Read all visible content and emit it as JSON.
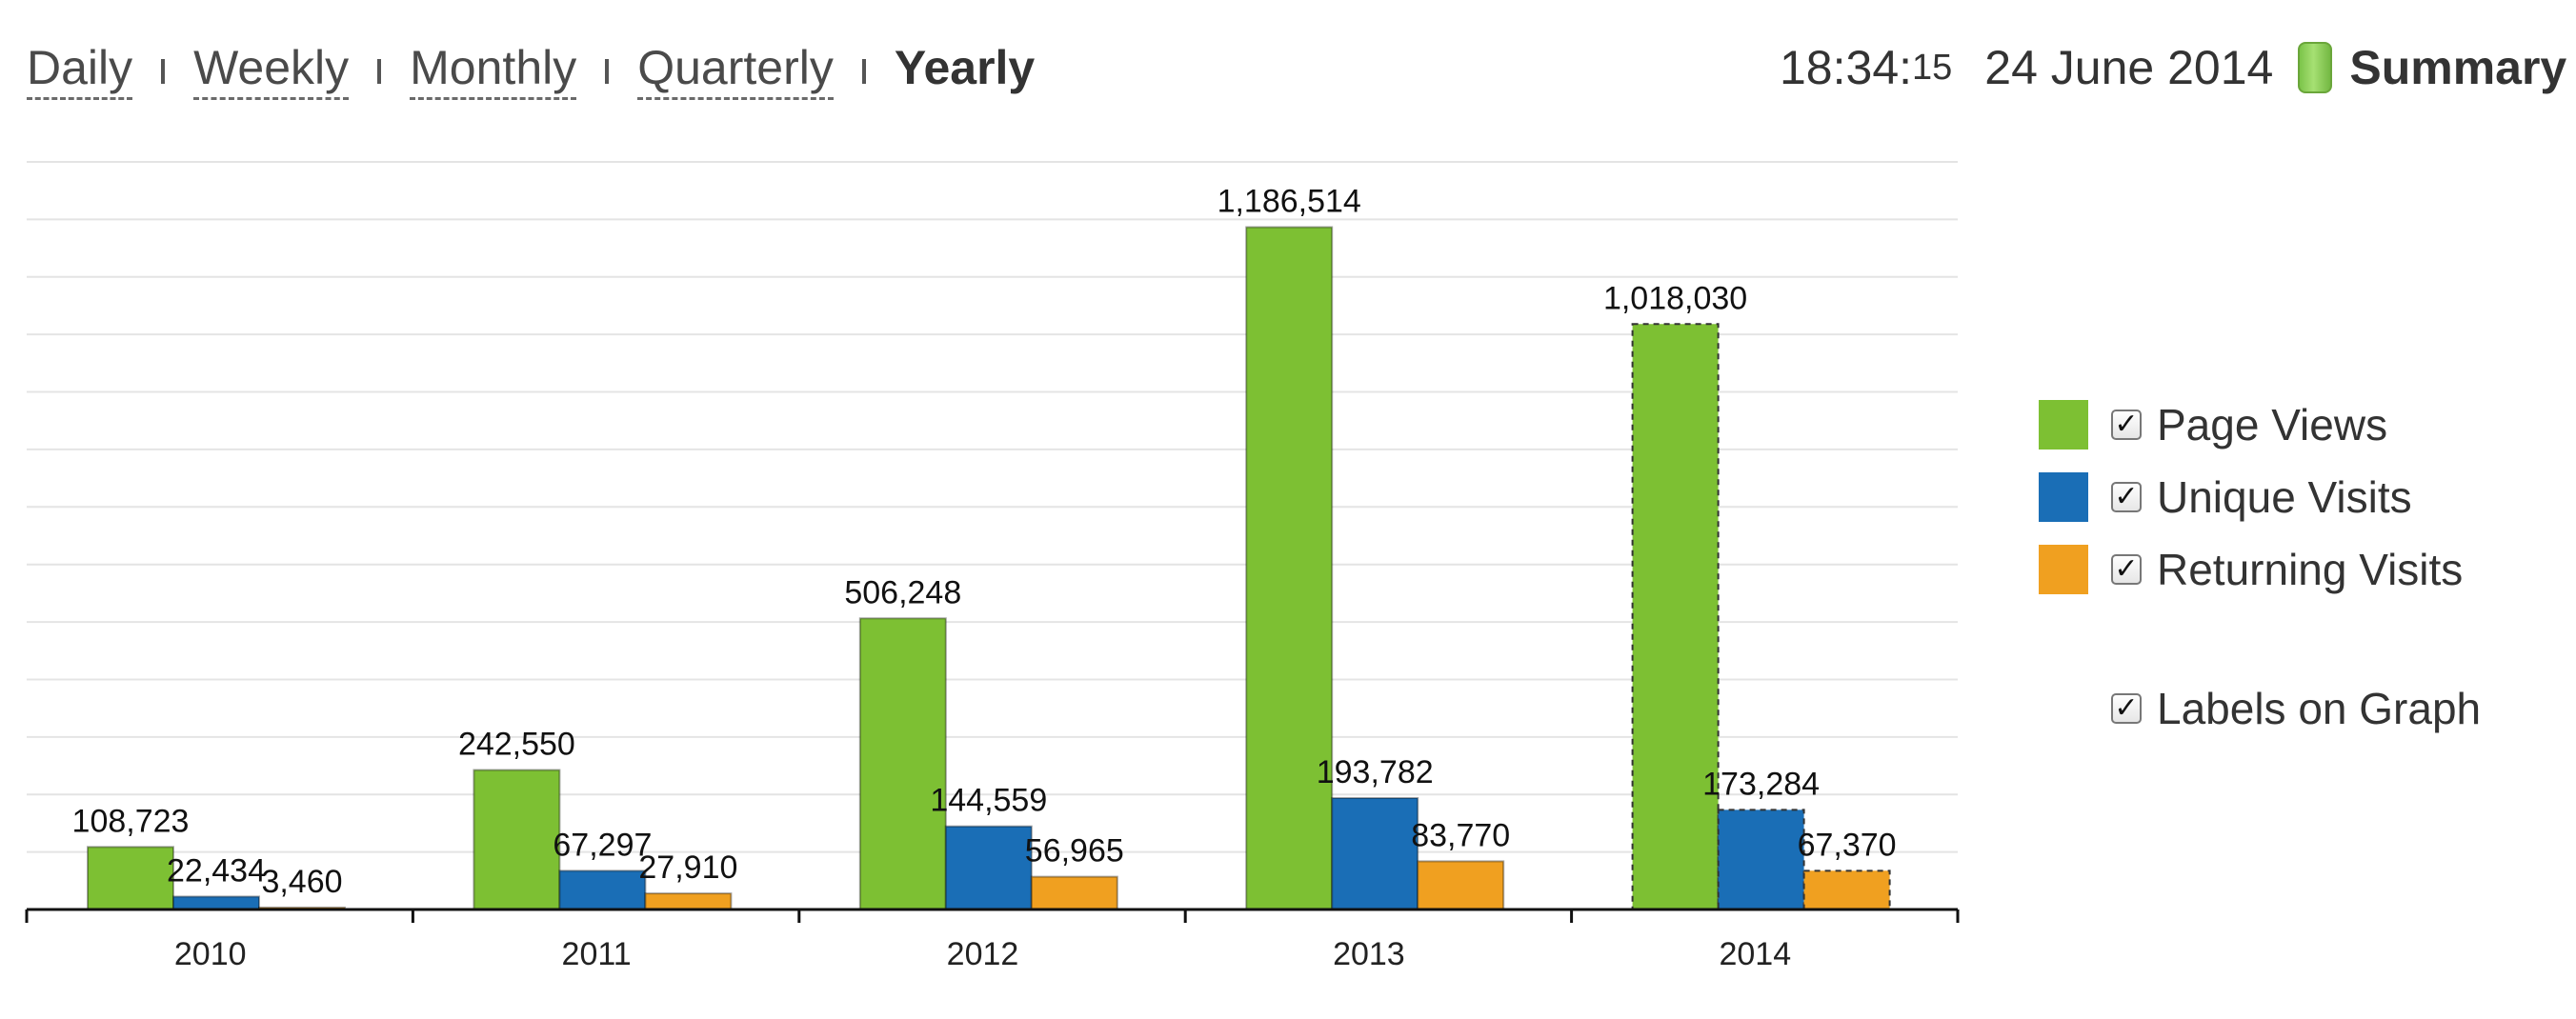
{
  "nav": {
    "periods": [
      "Daily",
      "Weekly",
      "Monthly",
      "Quarterly",
      "Yearly"
    ],
    "active": "Yearly"
  },
  "header": {
    "time": "18:34:",
    "seconds": "15",
    "date": "24 June 2014",
    "summary_label": "Summary"
  },
  "legend": {
    "items": [
      {
        "label": "Page Views",
        "checked": true,
        "color": "#7dc033"
      },
      {
        "label": "Unique Visits",
        "checked": true,
        "color": "#1a6eb6"
      },
      {
        "label": "Returning Visits",
        "checked": true,
        "color": "#f0a020"
      }
    ],
    "labels_option": {
      "label": "Labels on Graph",
      "checked": true
    },
    "check_glyph": "✓"
  },
  "chart_data": {
    "type": "bar",
    "categories": [
      "2010",
      "2011",
      "2012",
      "2013",
      "2014"
    ],
    "series": [
      {
        "name": "Page Views",
        "color": "#7dc033",
        "values": [
          108723,
          242550,
          506248,
          1186514,
          1018030
        ],
        "labels": [
          "108,723",
          "242,550",
          "506,248",
          "1,186,514",
          "1,018,030"
        ]
      },
      {
        "name": "Unique Visits",
        "color": "#1a6eb6",
        "values": [
          22434,
          67297,
          144559,
          193782,
          173284
        ],
        "labels": [
          "22,434",
          "67,297",
          "144,559",
          "193,782",
          "173,284"
        ]
      },
      {
        "name": "Returning Visits",
        "color": "#f0a020",
        "values": [
          3460,
          27910,
          56965,
          83770,
          67370
        ],
        "labels": [
          "3,460",
          "27,910",
          "56,965",
          "83,770",
          "67,370"
        ]
      }
    ],
    "partial_period": "2014",
    "ylim": [
      0,
      1300000
    ],
    "grid": true,
    "legend_position": "right",
    "data_labels": true
  }
}
